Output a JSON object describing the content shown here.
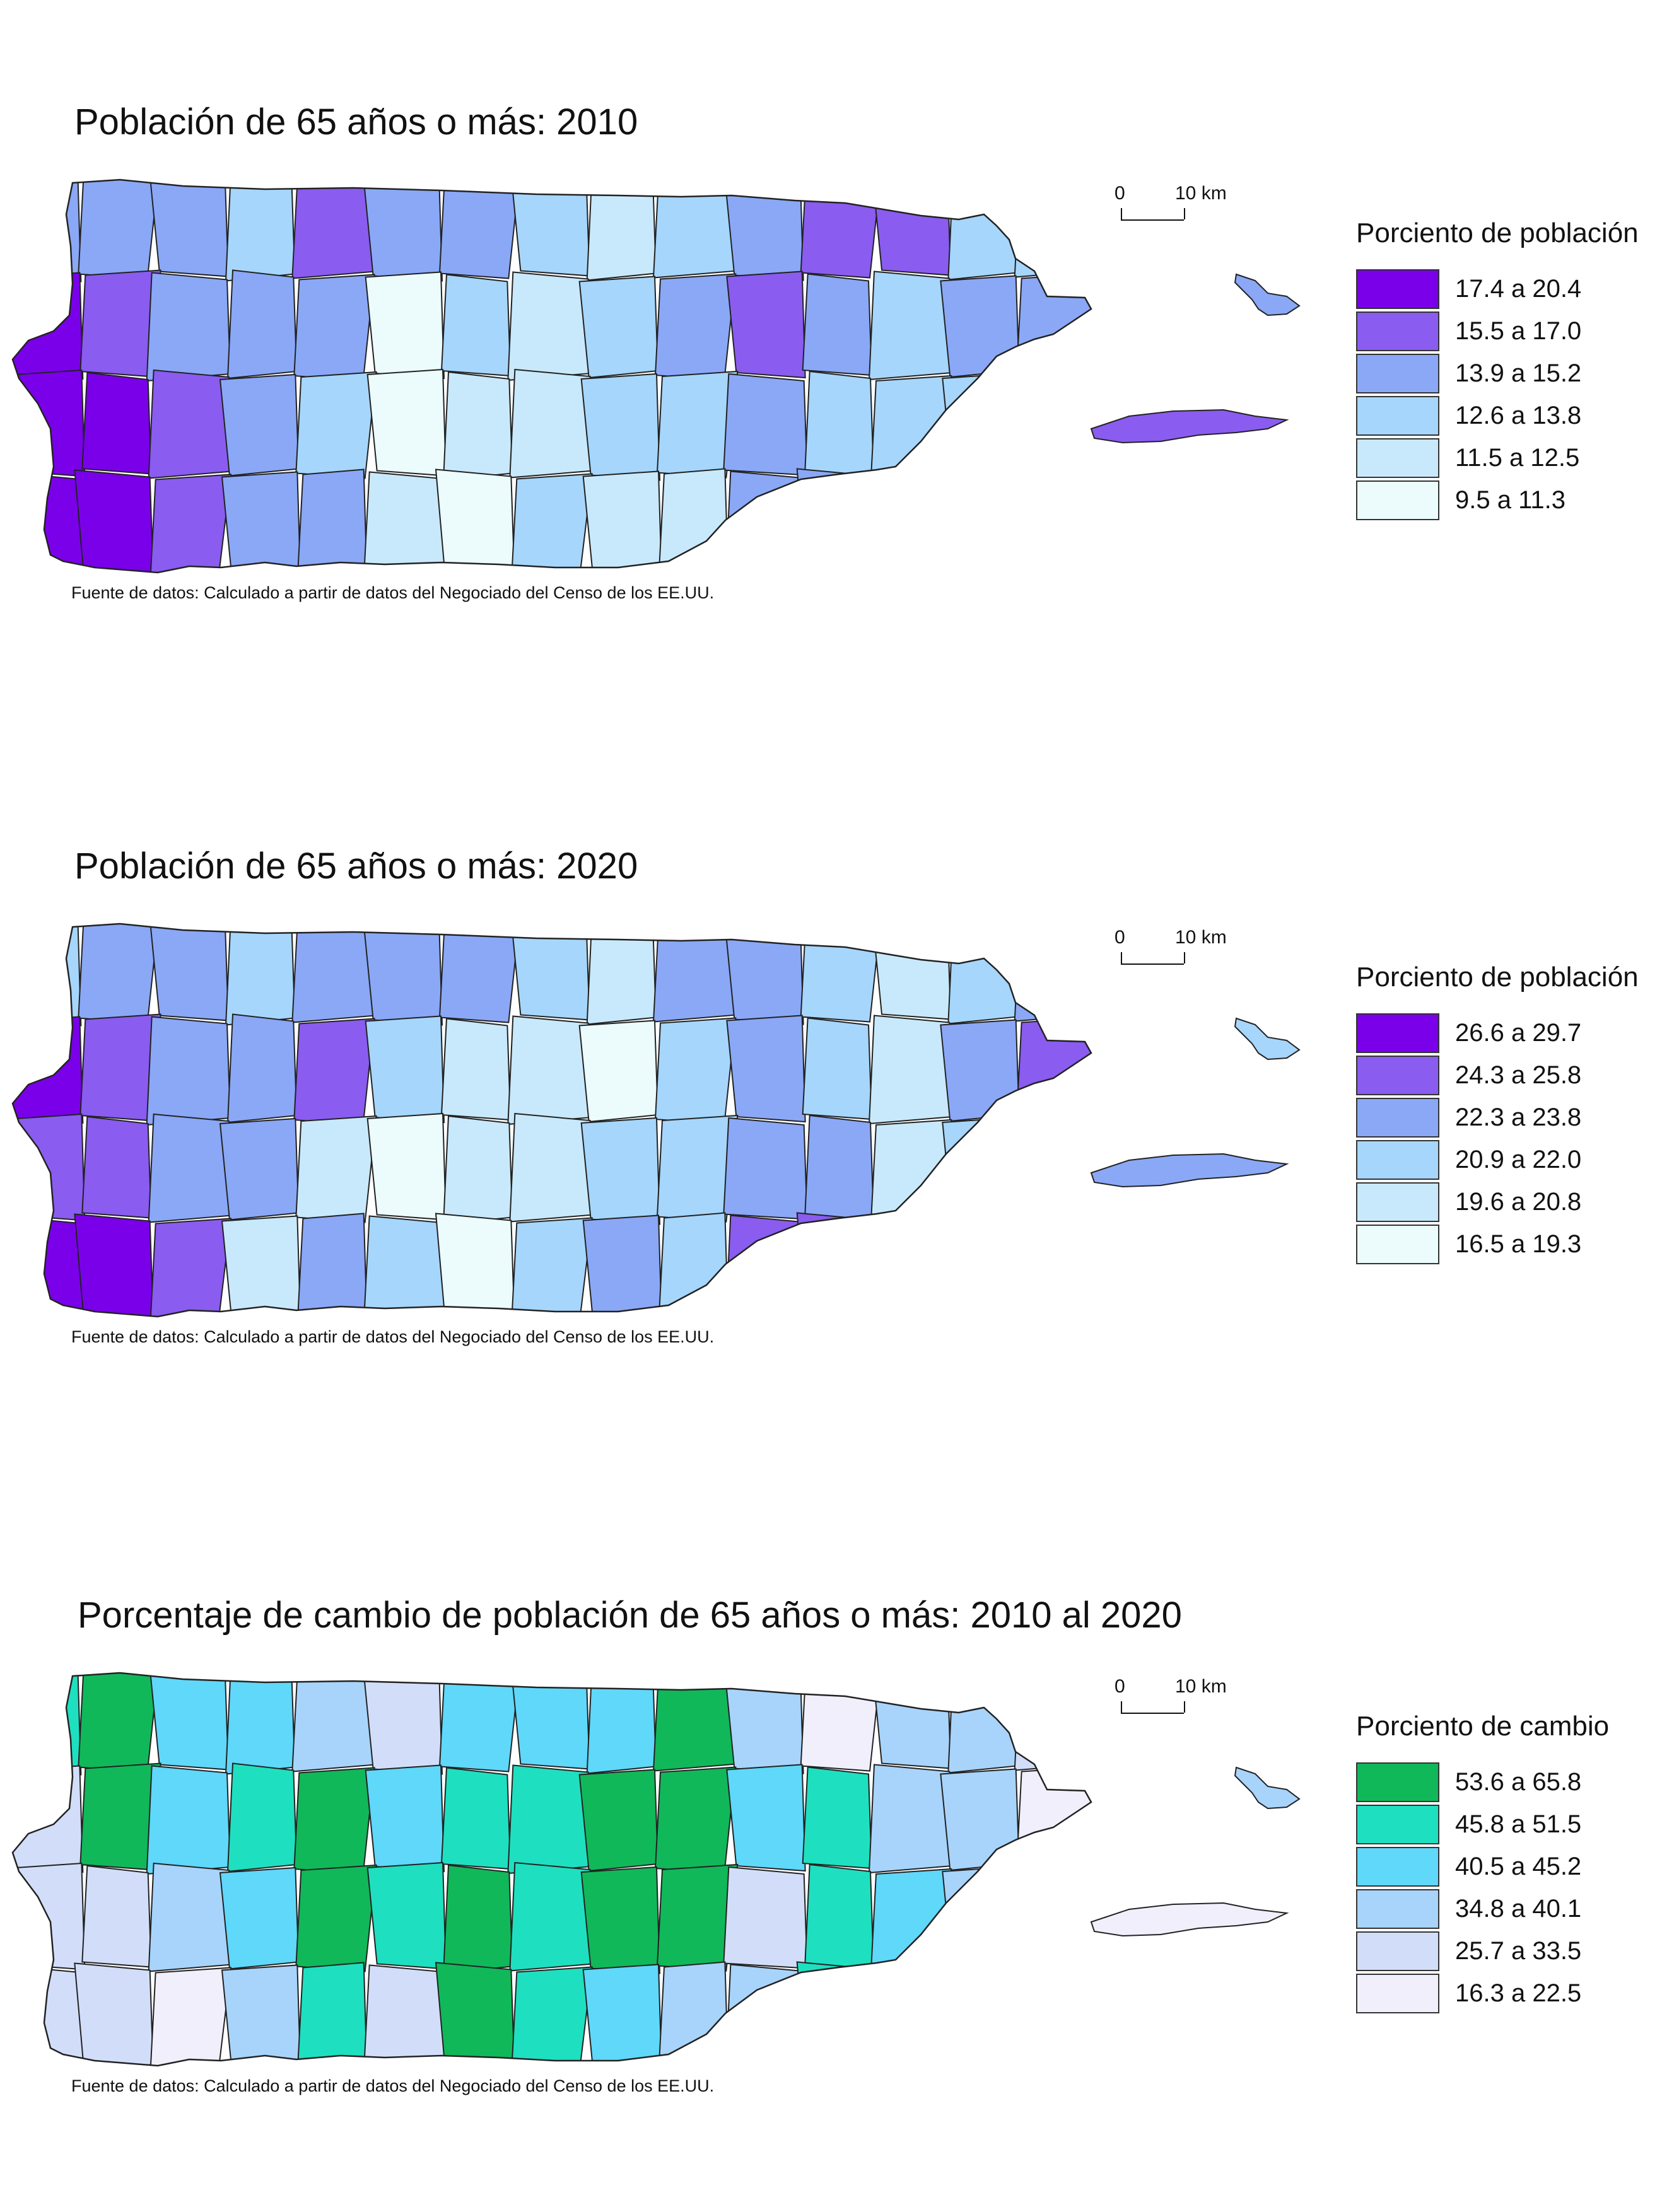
{
  "scalebar": {
    "zero": "0",
    "ten": "10 km"
  },
  "source_text": "Fuente de datos: Calculado a partir de datos del Negociado del Censo de los EE.UU.",
  "panels": [
    {
      "title": "Población de 65 años o más: 2010",
      "legend_title": "Porciento de población",
      "classes": [
        {
          "label": "17.4 a 20.4",
          "color": "#7a00ea"
        },
        {
          "label": "15.5 a 17.0",
          "color": "#8a5cf0"
        },
        {
          "label": "13.9 a 15.2",
          "color": "#8aa8f6"
        },
        {
          "label": "12.6 a 13.8",
          "color": "#a6d6fb"
        },
        {
          "label": "11.5 a 12.5",
          "color": "#c8e9fb"
        },
        {
          "label": "9.5 a 11.3",
          "color": "#ecfcfd"
        }
      ]
    },
    {
      "title": "Población de 65 años o más: 2020",
      "legend_title": "Porciento de población",
      "classes": [
        {
          "label": "26.6 a 29.7",
          "color": "#7a00ea"
        },
        {
          "label": "24.3 a 25.8",
          "color": "#8a5cf0"
        },
        {
          "label": "22.3 a 23.8",
          "color": "#8aa8f6"
        },
        {
          "label": "20.9 a 22.0",
          "color": "#a6d6fb"
        },
        {
          "label": "19.6 a 20.8",
          "color": "#c8e9fb"
        },
        {
          "label": "16.5 a 19.3",
          "color": "#ecfcfd"
        }
      ]
    },
    {
      "title": "Porcentaje de cambio de población de 65 años o más: 2010 al 2020",
      "legend_title": "Porciento de cambio",
      "classes": [
        {
          "label": "53.6 a 65.8",
          "color": "#10b85a"
        },
        {
          "label": "45.8 a 51.5",
          "color": "#1ee0c0"
        },
        {
          "label": "40.5 a 45.2",
          "color": "#5fd8fa"
        },
        {
          "label": "34.8 a 40.1",
          "color": "#a8d4fb"
        },
        {
          "label": "25.7 a 33.5",
          "color": "#d2def9"
        },
        {
          "label": "16.3 a 22.5",
          "color": "#f1effc"
        }
      ]
    }
  ]
}
